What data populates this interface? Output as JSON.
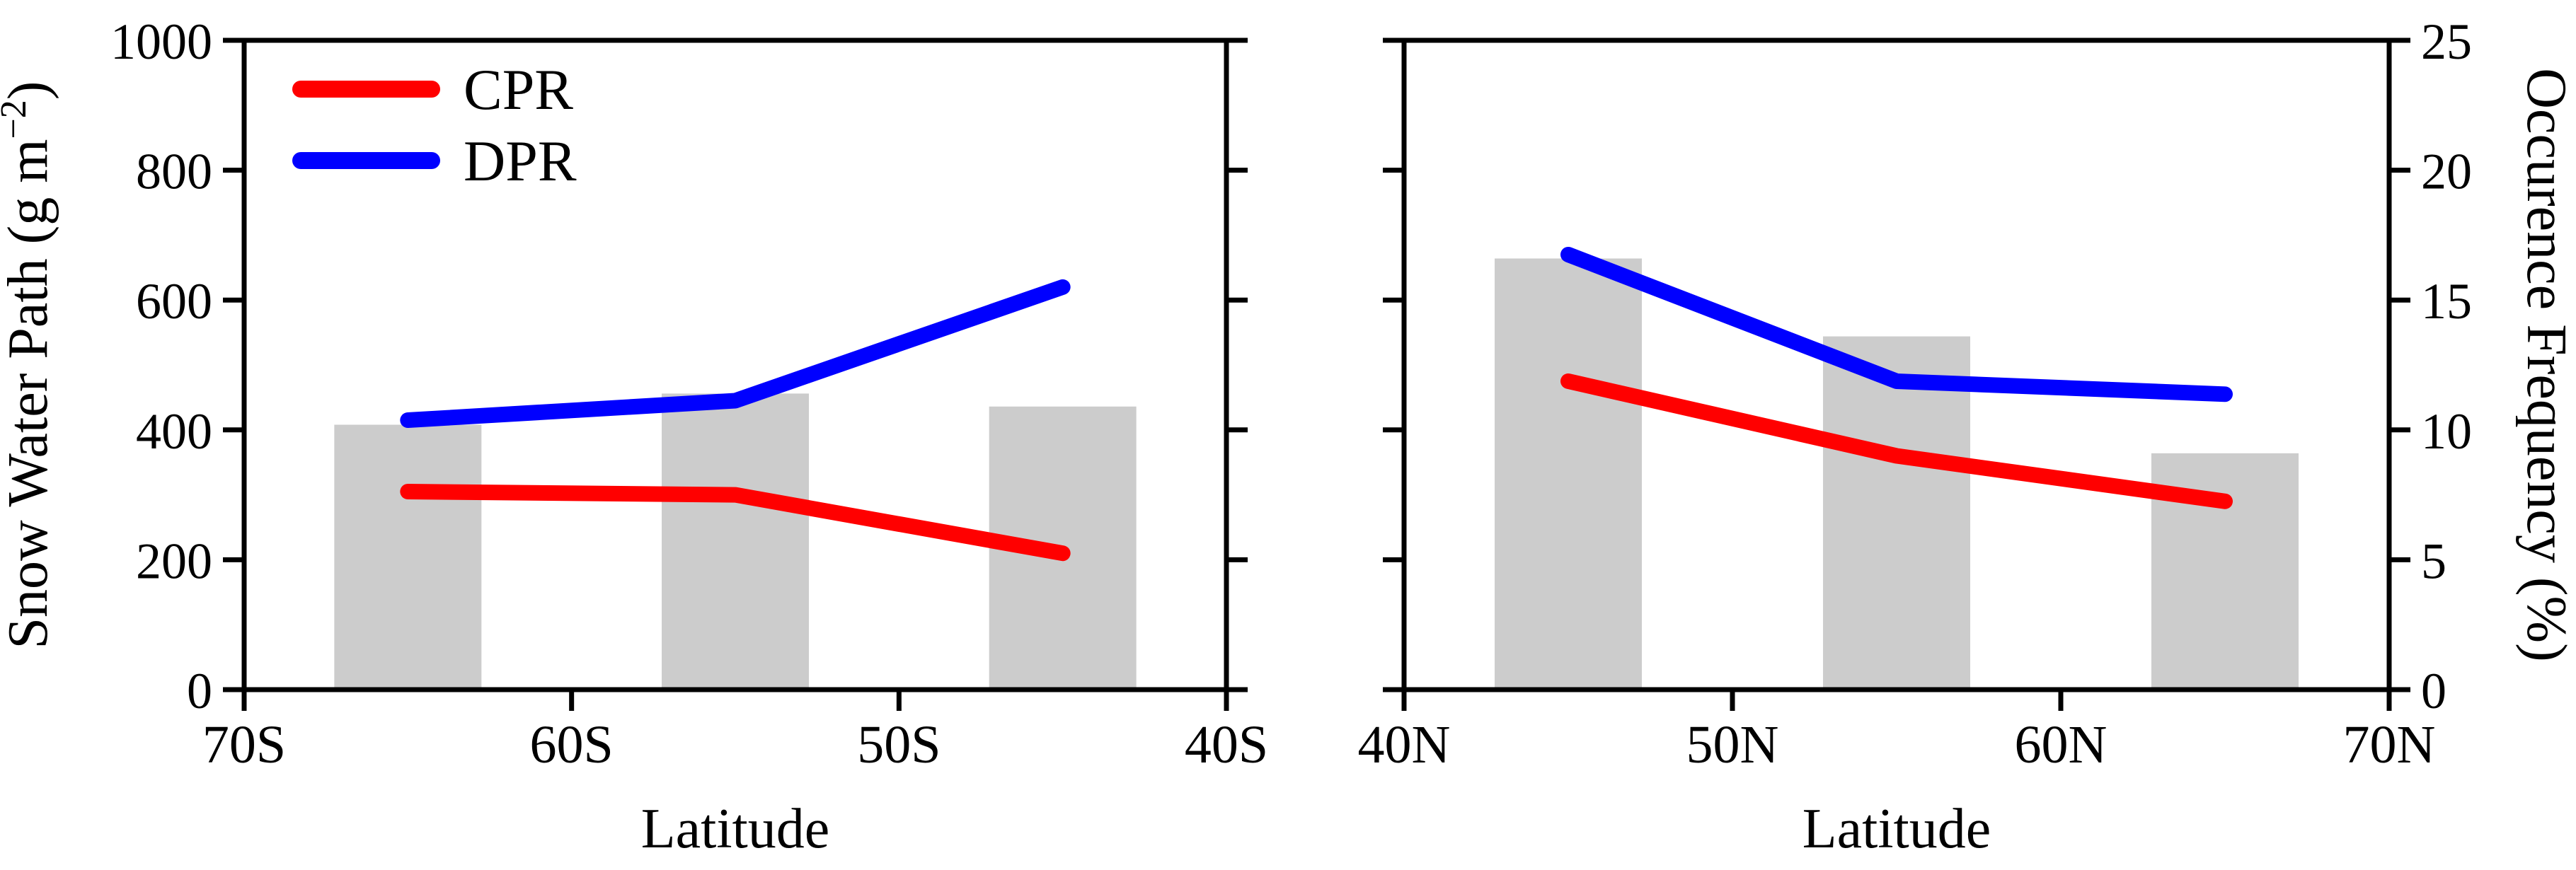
{
  "figure": {
    "background": "#ffffff",
    "text_color": "#000000",
    "left_ylabel": {
      "prefix": "Snow Water Path (g m",
      "sup": "−2",
      "suffix": ")"
    },
    "right_ylabel": "Occurence Frequency (%)",
    "legend": {
      "position": "upper-left-of-left-panel",
      "entries": [
        {
          "label": "CPR",
          "color": "#ff0000"
        },
        {
          "label": "DPR",
          "color": "#0000ff"
        }
      ]
    }
  },
  "chart_data": [
    {
      "type": "line+bar",
      "panel": "southern-hemisphere",
      "xlabel": "Latitude",
      "x_direction": "S",
      "x_ticks": [
        "70S",
        "60S",
        "50S",
        "40S"
      ],
      "x_tick_lat": [
        70,
        60,
        50,
        40
      ],
      "categories": [
        "65S",
        "55S",
        "45S"
      ],
      "x": [
        65,
        55,
        45
      ],
      "series": [
        {
          "name": "CPR",
          "axis": "left",
          "unit": "g m−2",
          "color": "#ff0000",
          "values": [
            305,
            300,
            210
          ]
        },
        {
          "name": "DPR",
          "axis": "left",
          "unit": "g m−2",
          "color": "#0000ff",
          "values": [
            415,
            445,
            620
          ]
        }
      ],
      "bars": {
        "name": "Occurence Frequency",
        "axis": "right",
        "unit": "%",
        "color": "#cccccc",
        "values": [
          10.2,
          11.4,
          10.9
        ]
      },
      "ylim_left": [
        0,
        1000
      ],
      "y_ticks_left": [
        "0",
        "200",
        "400",
        "600",
        "800",
        "1000"
      ],
      "ylim_right": [
        0,
        25
      ],
      "y_ticks_right": [
        "0",
        "5",
        "10",
        "15",
        "20",
        "25"
      ],
      "left_axis_labeled": true,
      "right_axis_labeled": false,
      "grid": false
    },
    {
      "type": "line+bar",
      "panel": "northern-hemisphere",
      "xlabel": "Latitude",
      "x_direction": "N",
      "x_ticks": [
        "40N",
        "50N",
        "60N",
        "70N"
      ],
      "x_tick_lat": [
        40,
        50,
        60,
        70
      ],
      "categories": [
        "45N",
        "55N",
        "65N"
      ],
      "x": [
        45,
        55,
        65
      ],
      "series": [
        {
          "name": "CPR",
          "axis": "left",
          "unit": "g m−2",
          "color": "#ff0000",
          "values": [
            475,
            360,
            290
          ]
        },
        {
          "name": "DPR",
          "axis": "left",
          "unit": "g m−2",
          "color": "#0000ff",
          "values": [
            670,
            475,
            455
          ]
        }
      ],
      "bars": {
        "name": "Occurence Frequency",
        "axis": "right",
        "unit": "%",
        "color": "#cccccc",
        "values": [
          16.6,
          13.6,
          9.1
        ]
      },
      "ylim_left": [
        0,
        1000
      ],
      "y_ticks_left": [
        "0",
        "200",
        "400",
        "600",
        "800",
        "1000"
      ],
      "ylim_right": [
        0,
        25
      ],
      "y_ticks_right": [
        "0",
        "5",
        "10",
        "15",
        "20",
        "25"
      ],
      "left_axis_labeled": false,
      "right_axis_labeled": true,
      "grid": false
    }
  ]
}
